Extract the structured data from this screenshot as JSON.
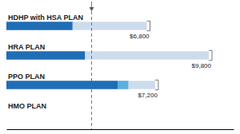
{
  "chart_data": {
    "type": "bar",
    "orientation": "horizontal",
    "stacked": true,
    "categories": [
      "HDHP with HSA PLAN",
      "HRA PLAN",
      "PPO PLAN",
      "HMO PLAN"
    ],
    "xlim": [
      0,
      11000
    ],
    "tick_labels": false,
    "reference_line": 4125,
    "series": [
      {
        "type": "bar",
        "color": "#cddcec",
        "values": [
          6800,
          9800,
          7200,
          0
        ],
        "value_labels": [
          "$6,800",
          "$9,800",
          "$7,200",
          null
        ]
      },
      {
        "type": "stacked_bar",
        "color": "#1f6db5",
        "values": [
          3200,
          3800,
          5400,
          0
        ]
      },
      {
        "type": "stacked_bar",
        "color": "#5aafde",
        "values": [
          0,
          0,
          500,
          0
        ]
      }
    ]
  }
}
